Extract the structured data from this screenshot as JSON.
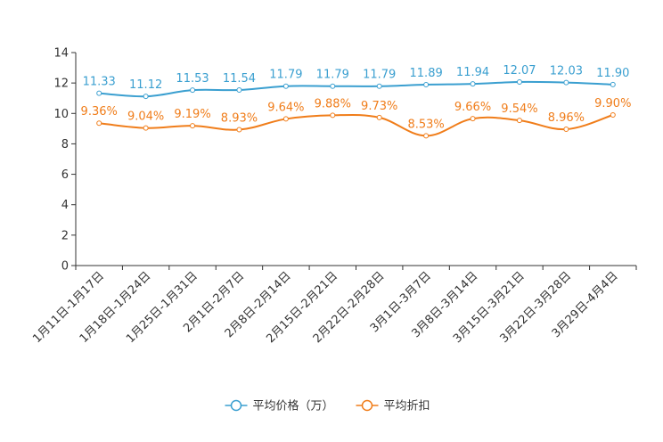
{
  "chart_data": {
    "type": "line",
    "categories": [
      "1月11日-1月17日",
      "1月18日-1月24日",
      "1月25日-1月31日",
      "2月1日-2月7日",
      "2月8日-2月14日",
      "2月15日-2月21日",
      "2月22日-2月28日",
      "3月1日-3月7日",
      "3月8日-3月14日",
      "3月15日-3月21日",
      "3月22日-3月28日",
      "3月29日-4月4日"
    ],
    "series": [
      {
        "name": "平均价格（万）",
        "color": "#3a9fd0",
        "values": [
          11.33,
          11.12,
          11.53,
          11.54,
          11.79,
          11.79,
          11.79,
          11.89,
          11.94,
          12.07,
          12.03,
          11.9
        ],
        "labels": [
          "11.33",
          "11.12",
          "11.53",
          "11.54",
          "11.79",
          "11.79",
          "11.79",
          "11.89",
          "11.94",
          "12.07",
          "12.03",
          "11.90"
        ]
      },
      {
        "name": "平均折扣",
        "color": "#f07d1a",
        "values": [
          9.36,
          9.04,
          9.19,
          8.93,
          9.64,
          9.88,
          9.73,
          8.53,
          9.66,
          9.54,
          8.96,
          9.9
        ],
        "labels": [
          "9.36%",
          "9.04%",
          "9.19%",
          "8.93%",
          "9.64%",
          "9.88%",
          "9.73%",
          "8.53%",
          "9.66%",
          "9.54%",
          "8.96%",
          "9.90%"
        ]
      }
    ],
    "yticks": [
      "0",
      "2",
      "4",
      "6",
      "8",
      "10",
      "12",
      "14"
    ],
    "ylim": [
      0,
      14
    ],
    "grid": false,
    "smooth": true,
    "legend_position": "bottom-center",
    "axis_color": "#333333"
  }
}
